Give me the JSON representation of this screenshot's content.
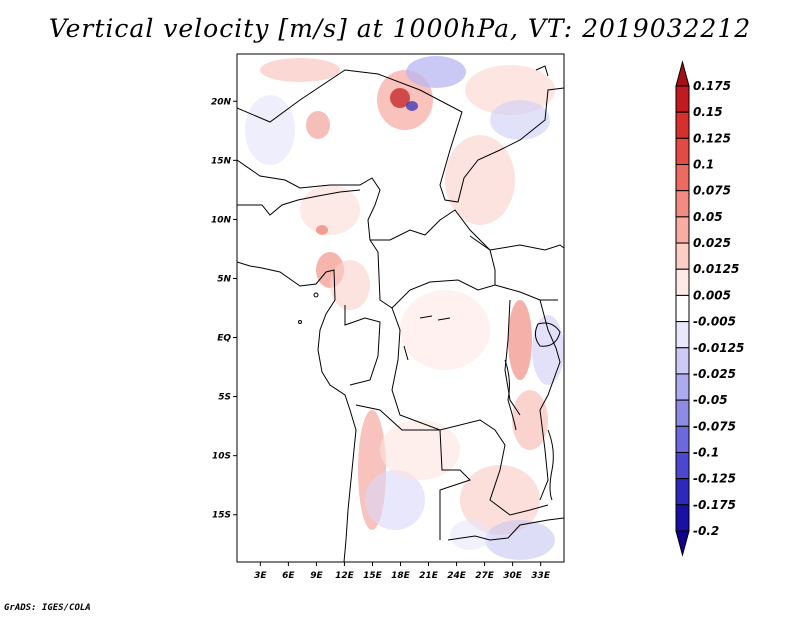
{
  "title": "Vertical velocity [m/s] at 1000hPa, VT: 2019032212",
  "footer": "GrADS: IGES/COLA",
  "map": {
    "lat_range": [
      -19,
      24
    ],
    "lon_range": [
      0.5,
      35.5
    ],
    "lat_ticks": [
      "20N",
      "15N",
      "10N",
      "5N",
      "EQ",
      "5S",
      "10S",
      "15S"
    ],
    "lon_ticks": [
      "3E",
      "6E",
      "9E",
      "12E",
      "15E",
      "18E",
      "21E",
      "24E",
      "27E",
      "30E",
      "33E"
    ]
  },
  "colorbar": {
    "labels": [
      "0.175",
      "0.15",
      "0.125",
      "0.1",
      "0.075",
      "0.05",
      "0.025",
      "0.0125",
      "0.005",
      "-0.005",
      "-0.0125",
      "-0.025",
      "-0.05",
      "-0.075",
      "-0.1",
      "-0.125",
      "-0.175",
      "-0.2"
    ],
    "colors": [
      "#a50f15",
      "#c31a1f",
      "#d72f2b",
      "#e34a42",
      "#ec6a5f",
      "#f38b80",
      "#f8aca2",
      "#fbcdc5",
      "#fde9e5",
      "#ffffff",
      "#e8e7fb",
      "#cccbf5",
      "#adabef",
      "#8d8be6",
      "#6d69dc",
      "#4c47cf",
      "#2e28bd",
      "#1a10a4",
      "#120088"
    ]
  }
}
